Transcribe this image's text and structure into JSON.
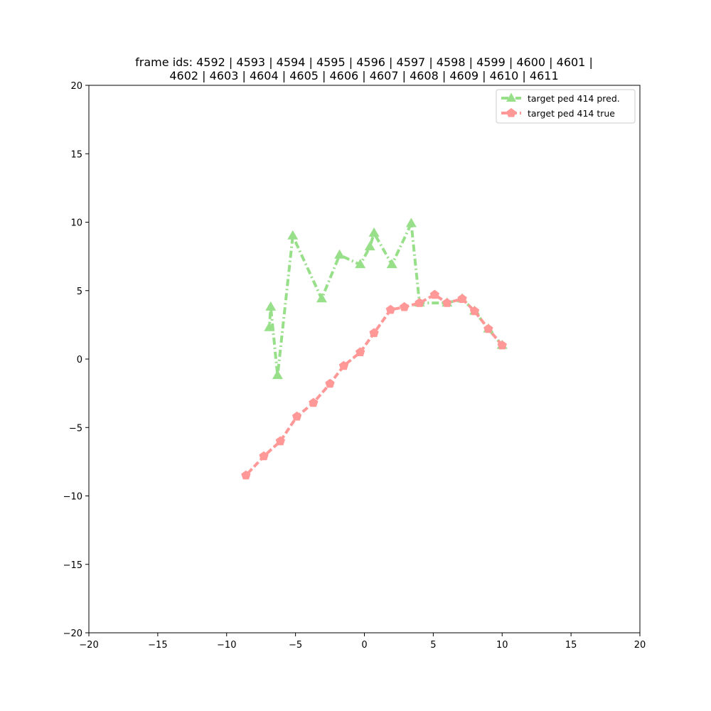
{
  "chart_data": {
    "type": "line",
    "title_lines": [
      "frame ids: 4592 | 4593 | 4594 | 4595 | 4596 | 4597 | 4598 | 4599 | 4600 | 4601 |",
      "4602 | 4603 | 4604 | 4605 | 4606 | 4607 | 4608 | 4609 | 4610 | 4611"
    ],
    "xlabel": "",
    "ylabel": "",
    "xlim": [
      -20,
      20
    ],
    "ylim": [
      -20,
      20
    ],
    "xticks": [
      -20,
      -15,
      -10,
      -5,
      0,
      5,
      10,
      15,
      20
    ],
    "yticks": [
      -20,
      -15,
      -10,
      -5,
      0,
      5,
      10,
      15,
      20
    ],
    "xtick_labels": [
      "−20",
      "−15",
      "−10",
      "−5",
      "0",
      "5",
      "10",
      "15",
      "20"
    ],
    "ytick_labels": [
      "−20",
      "−15",
      "−10",
      "−5",
      "0",
      "5",
      "10",
      "15",
      "20"
    ],
    "grid": false,
    "legend_position": "upper-right",
    "series": [
      {
        "name": "target ped 414 pred.",
        "color": "#98df8a",
        "marker": "triangle",
        "line_style": "dash-dot",
        "points": [
          [
            10.0,
            1.0
          ],
          [
            9.0,
            2.2
          ],
          [
            8.0,
            3.5
          ],
          [
            7.1,
            4.4
          ],
          [
            6.0,
            4.1
          ],
          [
            4.0,
            4.1
          ],
          [
            3.4,
            9.9
          ],
          [
            2.0,
            6.9
          ],
          [
            0.7,
            9.2
          ],
          [
            0.4,
            8.2
          ],
          [
            -0.3,
            6.9
          ],
          [
            -1.8,
            7.6
          ],
          [
            -3.1,
            4.4
          ],
          [
            -5.2,
            9.0
          ],
          [
            -6.3,
            -1.2
          ],
          [
            -6.8,
            3.8
          ],
          [
            -6.9,
            2.3
          ]
        ]
      },
      {
        "name": "target ped 414 true",
        "color": "#ff9896",
        "marker": "pentagon",
        "line_style": "dashed",
        "points": [
          [
            10.0,
            1.0
          ],
          [
            9.0,
            2.2
          ],
          [
            8.0,
            3.5
          ],
          [
            7.1,
            4.4
          ],
          [
            6.0,
            4.1
          ],
          [
            5.1,
            4.7
          ],
          [
            4.0,
            4.1
          ],
          [
            2.9,
            3.8
          ],
          [
            1.9,
            3.6
          ],
          [
            0.7,
            1.9
          ],
          [
            -0.3,
            0.5
          ],
          [
            -1.5,
            -0.5
          ],
          [
            -2.5,
            -1.8
          ],
          [
            -3.7,
            -3.2
          ],
          [
            -4.9,
            -4.2
          ],
          [
            -6.1,
            -6.0
          ],
          [
            -7.3,
            -7.1
          ],
          [
            -8.6,
            -8.5
          ]
        ]
      }
    ]
  }
}
